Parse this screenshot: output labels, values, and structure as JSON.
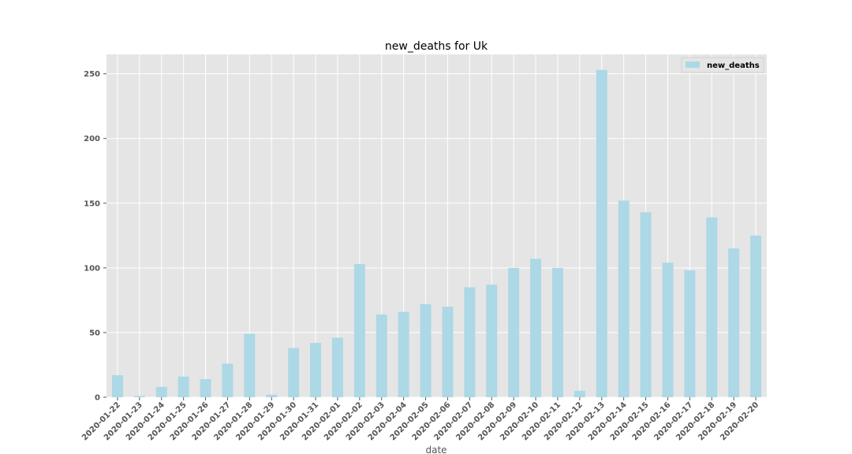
{
  "chart_data": {
    "type": "bar",
    "title": "new_deaths for Uk",
    "xlabel": "date",
    "ylabel": "",
    "ylim": [
      0,
      265
    ],
    "yticks": [
      0,
      50,
      100,
      150,
      200,
      250
    ],
    "grid": true,
    "legend_position": "top-right",
    "colors": {
      "bar": "#add8e6",
      "background": "#e5e5e5",
      "grid": "#ffffff"
    },
    "categories": [
      "2020-01-22",
      "2020-01-23",
      "2020-01-24",
      "2020-01-25",
      "2020-01-26",
      "2020-01-27",
      "2020-01-28",
      "2020-01-29",
      "2020-01-30",
      "2020-01-31",
      "2020-02-01",
      "2020-02-02",
      "2020-02-03",
      "2020-02-04",
      "2020-02-05",
      "2020-02-06",
      "2020-02-07",
      "2020-02-08",
      "2020-02-09",
      "2020-02-10",
      "2020-02-11",
      "2020-02-12",
      "2020-02-13",
      "2020-02-14",
      "2020-02-15",
      "2020-02-16",
      "2020-02-17",
      "2020-02-18",
      "2020-02-19",
      "2020-02-20"
    ],
    "series": [
      {
        "name": "new_deaths",
        "values": [
          17,
          1,
          8,
          16,
          14,
          26,
          49,
          2,
          38,
          42,
          46,
          103,
          64,
          66,
          72,
          70,
          85,
          87,
          100,
          107,
          100,
          5,
          253,
          152,
          143,
          104,
          98,
          139,
          115,
          125
        ]
      }
    ]
  }
}
